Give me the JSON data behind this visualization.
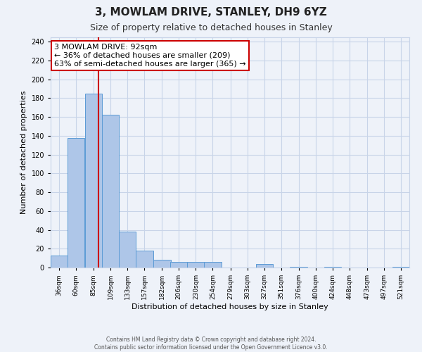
{
  "title": "3, MOWLAM DRIVE, STANLEY, DH9 6YZ",
  "subtitle": "Size of property relative to detached houses in Stanley",
  "xlabel": "Distribution of detached houses by size in Stanley",
  "ylabel": "Number of detached properties",
  "bin_labels": [
    "36sqm",
    "60sqm",
    "85sqm",
    "109sqm",
    "133sqm",
    "157sqm",
    "182sqm",
    "206sqm",
    "230sqm",
    "254sqm",
    "279sqm",
    "303sqm",
    "327sqm",
    "351sqm",
    "376sqm",
    "400sqm",
    "424sqm",
    "448sqm",
    "473sqm",
    "497sqm",
    "521sqm"
  ],
  "bar_values": [
    13,
    138,
    185,
    162,
    38,
    18,
    8,
    6,
    6,
    6,
    0,
    0,
    4,
    0,
    1,
    0,
    1,
    0,
    0,
    0,
    1
  ],
  "bar_color": "#aec6e8",
  "bar_edge_color": "#5b9bd5",
  "ylim": [
    0,
    245
  ],
  "yticks": [
    0,
    20,
    40,
    60,
    80,
    100,
    120,
    140,
    160,
    180,
    200,
    220,
    240
  ],
  "red_line_x": 92,
  "annotation_text": "3 MOWLAM DRIVE: 92sqm\n← 36% of detached houses are smaller (209)\n63% of semi-detached houses are larger (365) →",
  "footer_line1": "Contains HM Land Registry data © Crown copyright and database right 2024.",
  "footer_line2": "Contains public sector information licensed under the Open Government Licence v3.0.",
  "background_color": "#eef2f9",
  "grid_color": "#c8d4e8",
  "annotation_box_color": "#ffffff",
  "annotation_box_edge": "#cc0000",
  "red_line_color": "#cc0000",
  "title_fontsize": 11,
  "subtitle_fontsize": 9,
  "ylabel_fontsize": 8,
  "xlabel_fontsize": 8,
  "tick_fontsize": 7,
  "annot_fontsize": 8
}
